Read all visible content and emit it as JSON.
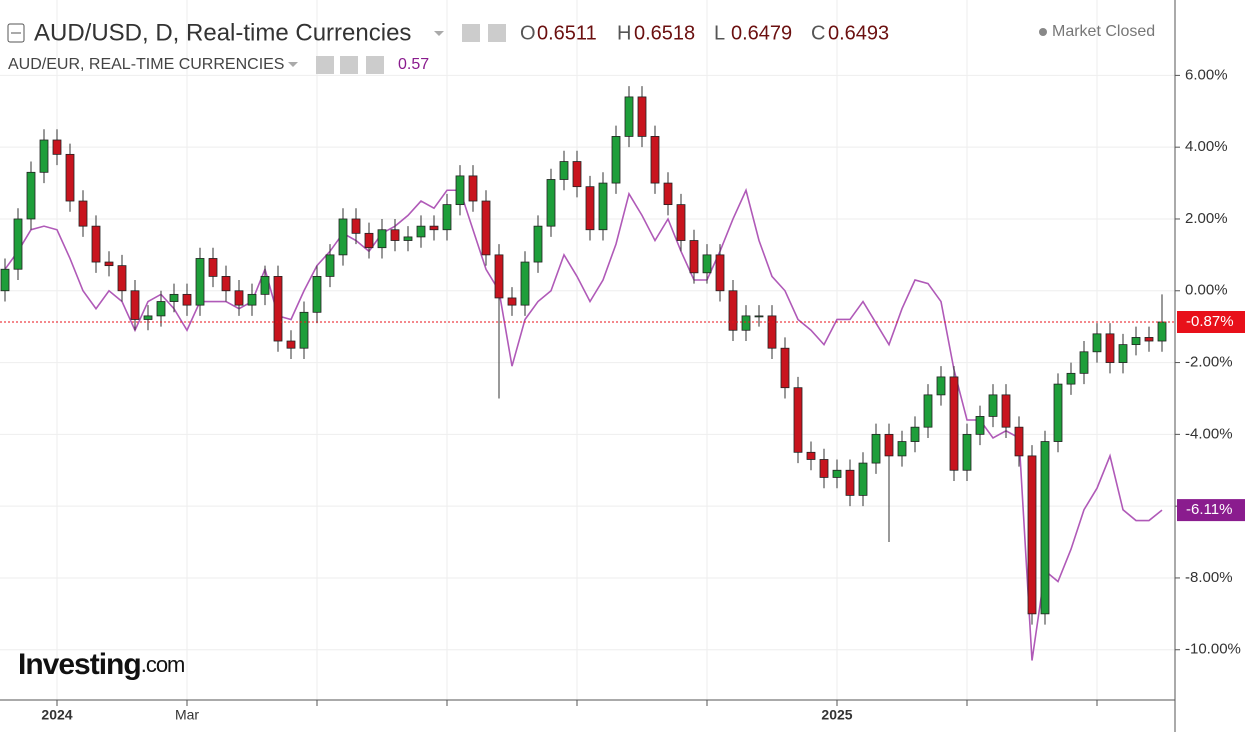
{
  "chart_data": {
    "type": "candlestick",
    "title": "AUD/USD, D, Real-time Currencies",
    "ohlc_legend": [
      {
        "key": "O",
        "value": 0.6511
      },
      {
        "key": "H",
        "value": 0.6518
      },
      {
        "key": "L",
        "value": 0.6479
      },
      {
        "key": "C",
        "value": 0.6493
      }
    ],
    "status": "Market Closed",
    "compare_title": "AUD/EUR, REAL-TIME CURRENCIES",
    "compare_value": 0.57,
    "logo": {
      "main": "Investing",
      "suffix": ".com"
    },
    "categories": [
      null,
      null,
      null,
      null,
      "2024",
      null,
      null,
      null,
      null,
      null,
      null,
      null,
      null,
      null,
      "Mar",
      null,
      null,
      null,
      null,
      null,
      null,
      null,
      null,
      null,
      null,
      null,
      null,
      null,
      null,
      null,
      null,
      null,
      null,
      null,
      null,
      null,
      null,
      null,
      null,
      null,
      null,
      null,
      null,
      null,
      null,
      null,
      null,
      null,
      null,
      null,
      null,
      null,
      null,
      null,
      null,
      null,
      null,
      null,
      null,
      null,
      null,
      null,
      null,
      null,
      "2025",
      null,
      null,
      null,
      null,
      null,
      null,
      null,
      null,
      null,
      null,
      null,
      null,
      null,
      null,
      null,
      null,
      null,
      null,
      null,
      null,
      null,
      null,
      null,
      null,
      null
    ],
    "ylim": [
      -11.4,
      8.1
    ],
    "yticks": [
      {
        "value": 6,
        "label": "6.00%"
      },
      {
        "value": 4,
        "label": "4.00%"
      },
      {
        "value": 2,
        "label": "2.00%"
      },
      {
        "value": 0,
        "label": "0.00%"
      },
      {
        "value": -2,
        "label": "-2.00%"
      },
      {
        "value": -4,
        "label": "-4.00%"
      },
      {
        "value": -6,
        "label": "-6.00%"
      },
      {
        "value": -8,
        "label": "-8.00%"
      },
      {
        "value": -10,
        "label": "-10.00%"
      }
    ],
    "grid": true,
    "up_color": "#1e9e3a",
    "down_color": "#c8141e",
    "open": [
      0.0,
      0.6,
      2.0,
      3.3,
      4.2,
      3.8,
      2.5,
      1.8,
      0.8,
      0.7,
      0.0,
      -0.8,
      -0.7,
      -0.3,
      -0.1,
      -0.4,
      0.9,
      0.4,
      0.0,
      -0.4,
      -0.1,
      0.4,
      -1.4,
      -1.6,
      -0.6,
      0.4,
      1.0,
      2.0,
      1.6,
      1.2,
      1.7,
      1.4,
      1.5,
      1.8,
      1.7,
      2.4,
      3.2,
      2.5,
      1.0,
      -0.2,
      -0.4,
      0.8,
      1.8,
      3.1,
      3.6,
      2.9,
      1.7,
      3.0,
      4.3,
      5.4,
      4.3,
      3.0,
      2.4,
      1.4,
      0.5,
      1.0,
      0.0,
      -1.1,
      -0.7,
      -0.7,
      -1.6,
      -2.7,
      -4.5,
      -4.7,
      -5.2,
      -5.0,
      -5.7,
      -4.8,
      -4.0,
      -4.6,
      -4.2,
      -3.8,
      -2.9,
      -2.4,
      -5.0,
      -4.0,
      -3.5,
      -2.9,
      -3.8,
      -4.6,
      -9.0,
      -4.2,
      -2.6,
      -2.3,
      -1.7,
      -1.2,
      -2.0,
      -1.5,
      -1.3,
      -1.4
    ],
    "high": [
      0.9,
      2.3,
      3.6,
      4.5,
      4.5,
      4.1,
      2.8,
      2.1,
      1.1,
      1.0,
      0.3,
      -0.4,
      0.0,
      0.2,
      0.2,
      1.2,
      1.2,
      0.7,
      0.3,
      0.2,
      0.7,
      0.7,
      -1.1,
      -0.3,
      0.7,
      1.3,
      2.3,
      2.3,
      1.9,
      2.0,
      2.0,
      1.8,
      2.1,
      2.1,
      2.7,
      3.5,
      3.5,
      2.8,
      1.3,
      0.1,
      1.1,
      2.1,
      3.4,
      3.9,
      3.9,
      3.2,
      3.3,
      4.6,
      5.7,
      5.7,
      4.6,
      3.3,
      2.7,
      1.7,
      1.3,
      1.3,
      0.3,
      -0.4,
      -0.4,
      -0.4,
      -1.3,
      -2.4,
      -4.2,
      -4.4,
      -4.7,
      -4.7,
      -4.5,
      -3.7,
      -3.7,
      -3.9,
      -3.5,
      -2.6,
      -2.1,
      -2.1,
      -3.7,
      -3.2,
      -2.6,
      -2.6,
      -3.5,
      -4.3,
      -3.9,
      -2.3,
      -2.0,
      -1.4,
      -0.9,
      -0.9,
      -1.2,
      -1.0,
      -1.0,
      -0.1
    ],
    "low": [
      -0.3,
      0.3,
      1.7,
      3.0,
      3.5,
      2.2,
      1.5,
      0.5,
      0.4,
      -0.3,
      -1.1,
      -1.1,
      -1.0,
      -0.6,
      -0.7,
      -0.7,
      0.1,
      -0.3,
      -0.7,
      -0.7,
      -0.4,
      -1.7,
      -1.9,
      -1.9,
      -0.9,
      0.1,
      0.7,
      1.3,
      0.9,
      0.9,
      1.1,
      1.1,
      1.2,
      1.4,
      1.4,
      2.1,
      2.2,
      0.7,
      -3.0,
      -0.7,
      -0.7,
      0.5,
      1.5,
      2.8,
      2.6,
      1.4,
      1.4,
      2.7,
      4.0,
      4.0,
      2.7,
      2.1,
      1.1,
      0.2,
      0.2,
      -0.3,
      -1.4,
      -1.4,
      -1.0,
      -1.9,
      -3.0,
      -4.8,
      -5.0,
      -5.5,
      -5.5,
      -6.0,
      -6.0,
      -5.1,
      -7.0,
      -4.9,
      -4.5,
      -4.1,
      -3.2,
      -5.3,
      -5.3,
      -4.3,
      -3.8,
      -4.1,
      -4.9,
      -9.3,
      -9.3,
      -4.5,
      -2.9,
      -2.6,
      -2.0,
      -2.3,
      -2.3,
      -1.8,
      -1.7,
      -1.7
    ],
    "close": [
      0.6,
      2.0,
      3.3,
      4.2,
      3.8,
      2.5,
      1.8,
      0.8,
      0.7,
      0.0,
      -0.8,
      -0.7,
      -0.3,
      -0.1,
      -0.4,
      0.9,
      0.4,
      0.0,
      -0.4,
      -0.1,
      0.4,
      -1.4,
      -1.6,
      -0.6,
      0.4,
      1.0,
      2.0,
      1.6,
      1.2,
      1.7,
      1.4,
      1.5,
      1.8,
      1.7,
      2.4,
      3.2,
      2.5,
      1.0,
      -0.2,
      -0.4,
      0.8,
      1.8,
      3.1,
      3.6,
      2.9,
      1.7,
      3.0,
      4.3,
      5.4,
      4.3,
      3.0,
      2.4,
      1.4,
      0.5,
      1.0,
      0.0,
      -1.1,
      -0.7,
      -0.7,
      -1.6,
      -2.7,
      -4.5,
      -4.7,
      -5.2,
      -5.0,
      -5.7,
      -4.8,
      -4.0,
      -4.6,
      -4.2,
      -3.8,
      -2.9,
      -2.4,
      -5.0,
      -4.0,
      -3.5,
      -2.9,
      -3.8,
      -4.6,
      -9.0,
      -4.2,
      -2.6,
      -2.3,
      -1.7,
      -1.2,
      -2.0,
      -1.5,
      -1.3,
      -1.4,
      -0.87
    ],
    "close_label": "-0.87%",
    "close_color": "#e8101a",
    "compare": {
      "color": "#b05ab8",
      "label_color": "#8a1c8e",
      "last_label": "-6.11%",
      "values": [
        0.6,
        1.1,
        1.7,
        1.8,
        1.7,
        0.9,
        0,
        -0.5,
        0,
        -0.3,
        -1.1,
        -0.3,
        -0.1,
        -0.5,
        -1.1,
        -0.3,
        -0.3,
        -0.3,
        -0.5,
        -0.3,
        0.6,
        -0.7,
        -0.8,
        0,
        0.7,
        1.1,
        1.6,
        1.4,
        1.1,
        1.6,
        1.8,
        2.1,
        2.5,
        2.3,
        2.8,
        2.8,
        1.7,
        0.6,
        0,
        -2.1,
        -0.8,
        -0.3,
        0,
        1.0,
        0.4,
        -0.3,
        0.3,
        1.3,
        2.7,
        2.1,
        1.4,
        2.0,
        1.1,
        0.3,
        0.3,
        1.1,
        2.0,
        2.8,
        1.4,
        0.4,
        0,
        -0.8,
        -1.1,
        -1.5,
        -0.8,
        -0.8,
        -0.3,
        -0.9,
        -1.5,
        -0.5,
        0.3,
        0.2,
        -0.3,
        -2.2,
        -3.6,
        -3.6,
        -4.1,
        -3.9,
        -4.1,
        -10.3,
        -7.8,
        -8.1,
        -7.2,
        -6.1,
        -5.5,
        -4.6,
        -6.1,
        -6.4,
        -6.4,
        -6.11
      ]
    }
  }
}
